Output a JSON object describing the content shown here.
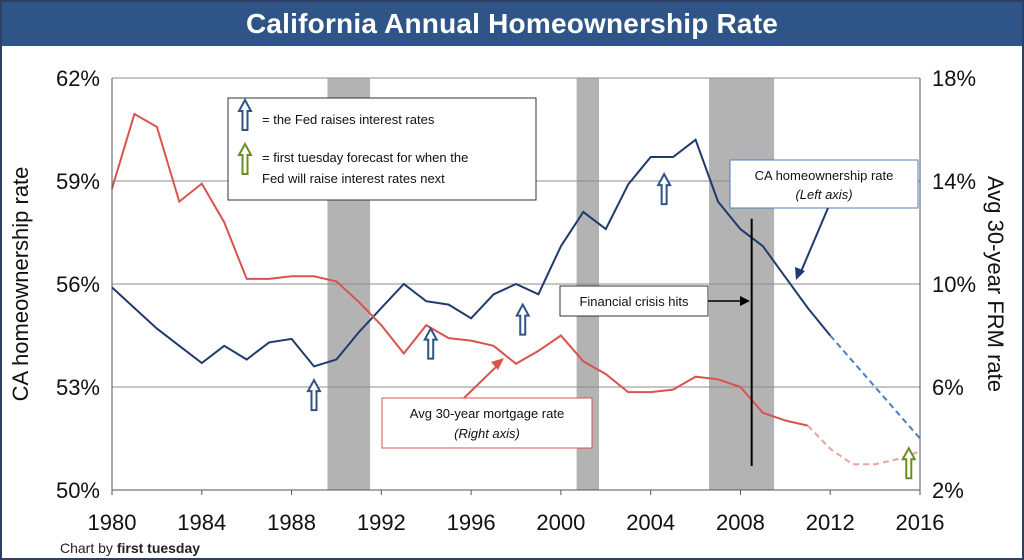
{
  "chart_data": {
    "type": "line",
    "title": "California Annual Homeownership Rate",
    "ylabel": "CA homeownership rate",
    "y2label": "Avg 30-year FRM rate",
    "ylim": [
      50,
      62
    ],
    "y2lim": [
      2,
      18
    ],
    "x_ticks": [
      "1980",
      "1984",
      "1988",
      "1992",
      "1996",
      "2000",
      "2004",
      "2008",
      "2012",
      "2016"
    ],
    "y_ticks": [
      "50%",
      "53%",
      "56%",
      "59%",
      "62%"
    ],
    "y2_ticks": [
      "2%",
      "6%",
      "10%",
      "14%",
      "18%"
    ],
    "grid": true,
    "recession_bands": [
      [
        1989.6,
        1991.5
      ],
      [
        2000.7,
        2001.7
      ],
      [
        2006.6,
        2009.5
      ]
    ],
    "series": [
      {
        "name": "CA homeownership rate",
        "axis": "left",
        "color": "#1f3a6b",
        "x": [
          1980,
          1981,
          1982,
          1983,
          1984,
          1985,
          1986,
          1987,
          1988,
          1989,
          1990,
          1991,
          1992,
          1993,
          1994,
          1995,
          1996,
          1997,
          1998,
          1999,
          2000,
          2001,
          2002,
          2003,
          2004,
          2005,
          2006,
          2007,
          2008,
          2009,
          2010,
          2011,
          2012
        ],
        "values": [
          55.9,
          55.3,
          54.7,
          54.2,
          53.7,
          54.2,
          53.8,
          54.3,
          54.4,
          53.6,
          53.8,
          54.6,
          55.3,
          56.0,
          55.5,
          55.4,
          55.0,
          55.7,
          56.0,
          55.7,
          57.1,
          58.1,
          57.6,
          58.9,
          59.7,
          59.7,
          60.2,
          58.4,
          57.6,
          57.1,
          56.2,
          55.3,
          54.5
        ],
        "projection": {
          "x": [
            2012,
            2016
          ],
          "values": [
            54.5,
            51.5
          ]
        }
      },
      {
        "name": "Avg 30-year mortgage rate",
        "axis": "right",
        "color": "#d9534f",
        "x": [
          1980,
          1981,
          1982,
          1983,
          1984,
          1985,
          1986,
          1987,
          1988,
          1989,
          1990,
          1991,
          1992,
          1993,
          1994,
          1995,
          1996,
          1997,
          1998,
          1999,
          2000,
          2001,
          2002,
          2003,
          2004,
          2005,
          2006,
          2007,
          2008,
          2009,
          2010,
          2011
        ],
        "values": [
          13.7,
          16.6,
          16.1,
          13.2,
          13.9,
          12.4,
          10.2,
          10.2,
          10.3,
          10.3,
          10.1,
          9.3,
          8.4,
          7.3,
          8.4,
          7.9,
          7.8,
          7.6,
          6.9,
          7.4,
          8.0,
          7.0,
          6.5,
          5.8,
          5.8,
          5.9,
          6.4,
          6.3,
          6.0,
          5.0,
          4.7,
          4.5
        ],
        "projection": {
          "x": [
            2011,
            2012,
            2013,
            2014,
            2015,
            2016
          ],
          "values": [
            4.5,
            3.6,
            3.0,
            3.0,
            3.2,
            3.5
          ]
        }
      }
    ],
    "fed_raises": [
      {
        "x": 1989,
        "y": 53.2
      },
      {
        "x": 1994.2,
        "y": 54.7
      },
      {
        "x": 1998.3,
        "y": 55.4
      },
      {
        "x": 2004.6,
        "y": 59.2
      }
    ],
    "forecast_raise": {
      "x": 2015.5,
      "y": 51.1
    },
    "financial_crisis": {
      "x": 2008.5,
      "y_top": 57.9,
      "y_bottom": 50.7
    },
    "legend": {
      "fed_text": "= the Fed raises interest rates",
      "forecast_line1": "= first tuesday forecast for when the",
      "forecast_line2": "Fed will raise interest rates next"
    },
    "annotations": {
      "ca_label": "CA homeownership  rate",
      "ca_axis": "(Left axis)",
      "mort_label": "Avg 30-year mortgage rate",
      "mort_axis": "(Right axis)",
      "crisis_label": "Financial  crisis hits"
    }
  },
  "colors": {
    "title_bg": "#2f5487",
    "ownership": "#1f3a6b",
    "mortgage": "#d9534f",
    "fed_arrow": "#2f5487",
    "forecast_arrow": "#6b8e23",
    "recession": "#b3b3b3"
  },
  "credit": {
    "prefix": "Chart by",
    "brand": "first tuesday"
  }
}
